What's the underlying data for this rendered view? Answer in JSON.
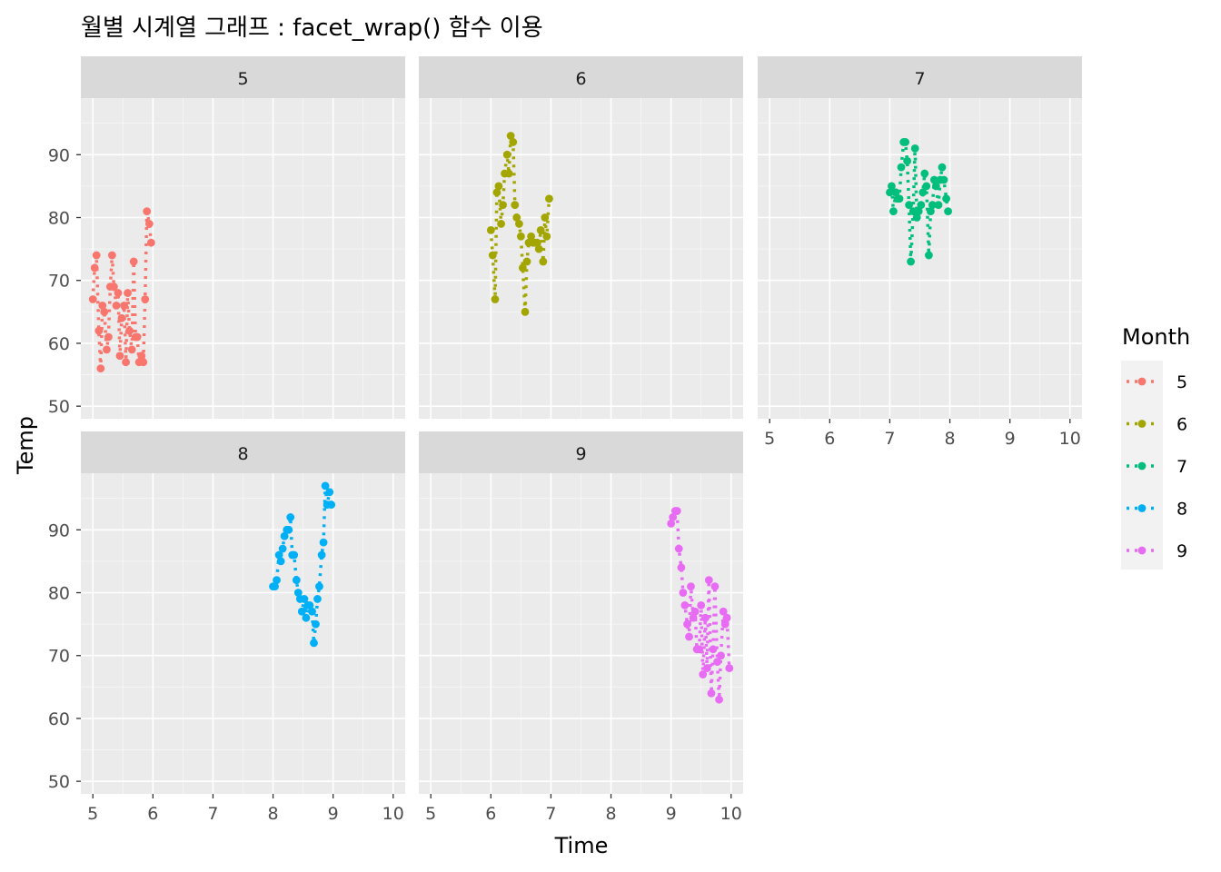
{
  "chart_data": {
    "type": "line",
    "facet_by": "Month",
    "title": "월별 시계열 그래프 : facet_wrap() 함수 이용",
    "xlabel": "Time",
    "ylabel": "Temp",
    "xlim": [
      4.8,
      10.2
    ],
    "ylim": [
      48,
      99
    ],
    "xticks": [
      5,
      6,
      7,
      8,
      9,
      10
    ],
    "yticks": [
      50,
      60,
      70,
      80,
      90
    ],
    "grid": true,
    "line_style": "dotted",
    "markers": true,
    "legend": {
      "title": "Month",
      "position": "right",
      "entries": [
        "5",
        "6",
        "7",
        "8",
        "9"
      ]
    },
    "colors": {
      "5": "#F8766D",
      "6": "#A3A500",
      "7": "#00BF7D",
      "8": "#00B0F6",
      "9": "#E76BF3"
    },
    "panel_background": "#EBEBEB",
    "strip_background": "#D9D9D9",
    "series": [
      {
        "name": "5",
        "x": [
          5.0,
          5.03,
          5.06,
          5.1,
          5.13,
          5.16,
          5.19,
          5.23,
          5.26,
          5.29,
          5.32,
          5.35,
          5.39,
          5.42,
          5.45,
          5.48,
          5.52,
          5.55,
          5.58,
          5.61,
          5.65,
          5.68,
          5.71,
          5.74,
          5.77,
          5.81,
          5.84,
          5.87,
          5.9,
          5.94,
          5.97
        ],
        "y": [
          67,
          72,
          74,
          62,
          56,
          66,
          65,
          59,
          61,
          69,
          74,
          69,
          66,
          68,
          58,
          64,
          66,
          57,
          68,
          62,
          59,
          73,
          61,
          61,
          57,
          58,
          57,
          67,
          81,
          79,
          76
        ]
      },
      {
        "name": "6",
        "x": [
          6.0,
          6.03,
          6.07,
          6.1,
          6.13,
          6.17,
          6.2,
          6.23,
          6.27,
          6.3,
          6.33,
          6.37,
          6.4,
          6.43,
          6.47,
          6.5,
          6.53,
          6.57,
          6.6,
          6.63,
          6.67,
          6.7,
          6.73,
          6.77,
          6.8,
          6.83,
          6.87,
          6.9,
          6.93,
          6.97
        ],
        "y": [
          78,
          74,
          67,
          84,
          85,
          79,
          82,
          87,
          90,
          87,
          93,
          92,
          82,
          80,
          79,
          77,
          72,
          65,
          73,
          76,
          77,
          76,
          76,
          76,
          75,
          78,
          73,
          80,
          77,
          83
        ]
      },
      {
        "name": "7",
        "x": [
          7.0,
          7.03,
          7.06,
          7.1,
          7.13,
          7.16,
          7.19,
          7.23,
          7.26,
          7.29,
          7.32,
          7.35,
          7.39,
          7.42,
          7.45,
          7.48,
          7.52,
          7.55,
          7.58,
          7.61,
          7.65,
          7.68,
          7.71,
          7.74,
          7.77,
          7.81,
          7.84,
          7.87,
          7.9,
          7.94,
          7.97
        ],
        "y": [
          84,
          85,
          81,
          84,
          83,
          83,
          88,
          92,
          92,
          89,
          82,
          73,
          81,
          91,
          80,
          81,
          82,
          84,
          87,
          85,
          74,
          81,
          82,
          86,
          85,
          82,
          86,
          88,
          86,
          83,
          81
        ]
      },
      {
        "name": "8",
        "x": [
          8.0,
          8.03,
          8.06,
          8.1,
          8.13,
          8.16,
          8.19,
          8.23,
          8.26,
          8.29,
          8.32,
          8.35,
          8.39,
          8.42,
          8.45,
          8.48,
          8.52,
          8.55,
          8.58,
          8.61,
          8.65,
          8.68,
          8.71,
          8.74,
          8.77,
          8.81,
          8.84,
          8.87,
          8.9,
          8.94,
          8.97
        ],
        "y": [
          81,
          81,
          82,
          86,
          85,
          87,
          89,
          90,
          90,
          92,
          86,
          86,
          82,
          80,
          79,
          77,
          79,
          76,
          78,
          78,
          77,
          72,
          75,
          79,
          81,
          86,
          88,
          97,
          94,
          96,
          94
        ]
      },
      {
        "name": "9",
        "x": [
          9.0,
          9.03,
          9.07,
          9.1,
          9.13,
          9.17,
          9.2,
          9.23,
          9.27,
          9.3,
          9.33,
          9.37,
          9.4,
          9.43,
          9.47,
          9.5,
          9.53,
          9.57,
          9.6,
          9.63,
          9.67,
          9.7,
          9.73,
          9.77,
          9.8,
          9.83,
          9.87,
          9.9,
          9.93,
          9.97
        ],
        "y": [
          91,
          92,
          93,
          93,
          87,
          84,
          80,
          78,
          75,
          73,
          81,
          76,
          77,
          71,
          71,
          78,
          67,
          76,
          68,
          82,
          64,
          71,
          81,
          69,
          63,
          70,
          77,
          75,
          76,
          68
        ]
      }
    ]
  }
}
